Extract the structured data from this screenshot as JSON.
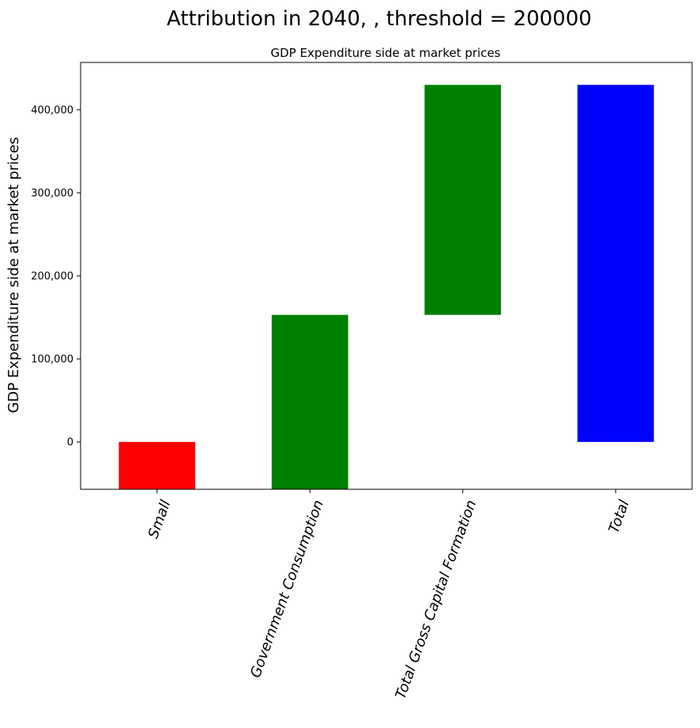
{
  "chart_data": {
    "type": "bar",
    "subtype": "waterfall",
    "suptitle": "Attribution in 2040, , threshold = 200000",
    "title": "GDP Expenditure side at market prices",
    "xlabel": "",
    "ylabel": "GDP Expenditure side at market prices",
    "categories": [
      "Small",
      "Government Consumption",
      "Total Gross Capital Formation",
      "Total"
    ],
    "bars": [
      {
        "category": "Small",
        "bottom": -60000,
        "top": 0,
        "color": "#ff0000"
      },
      {
        "category": "Government Consumption",
        "bottom": -60000,
        "top": 153000,
        "color": "#008000"
      },
      {
        "category": "Total Gross Capital Formation",
        "bottom": 153000,
        "top": 430000,
        "color": "#008000"
      },
      {
        "category": "Total",
        "bottom": 0,
        "top": 430000,
        "color": "#0000ff"
      }
    ],
    "ylim": [
      -57000,
      457000
    ],
    "yticks": [
      0,
      100000,
      200000,
      300000,
      400000
    ],
    "ytick_labels": [
      "0",
      "100,000",
      "200,000",
      "300,000",
      "400,000"
    ],
    "xtick_rotation": 70,
    "grid": false,
    "legend": "none"
  }
}
